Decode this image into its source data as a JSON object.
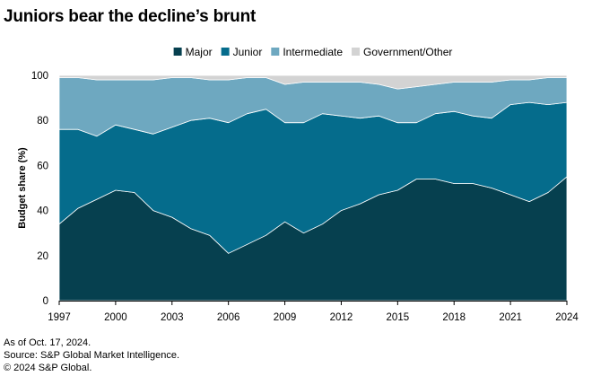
{
  "title": "Juniors bear the decline’s brunt",
  "footnotes": [
    "As of Oct. 17, 2024.",
    "Source: S&P Global Market Intelligence.",
    "© 2024 S&P Global."
  ],
  "chart_data": {
    "type": "area",
    "stacked": true,
    "title": "Juniors bear the decline’s brunt",
    "xlabel": "",
    "ylabel": "Budget share (%)",
    "xlim": [
      1997,
      2024
    ],
    "ylim": [
      0,
      100
    ],
    "x_ticks": [
      1997,
      2000,
      2003,
      2006,
      2009,
      2012,
      2015,
      2018,
      2021,
      2024
    ],
    "y_ticks": [
      0,
      20,
      40,
      60,
      80,
      100
    ],
    "grid": false,
    "legend_position": "top-center",
    "x": [
      1997,
      1998,
      1999,
      2000,
      2001,
      2002,
      2003,
      2004,
      2005,
      2006,
      2007,
      2008,
      2009,
      2010,
      2011,
      2012,
      2013,
      2014,
      2015,
      2016,
      2017,
      2018,
      2019,
      2020,
      2021,
      2022,
      2023,
      2024
    ],
    "series": [
      {
        "name": "Major",
        "color": "#06404f",
        "values": [
          34,
          41,
          45,
          49,
          48,
          40,
          37,
          32,
          29,
          21,
          25,
          29,
          35,
          30,
          34,
          40,
          43,
          47,
          49,
          54,
          54,
          52,
          52,
          50,
          47,
          44,
          48,
          55
        ]
      },
      {
        "name": "Junior",
        "color": "#056c8c",
        "values": [
          42,
          35,
          28,
          29,
          28,
          34,
          40,
          48,
          52,
          58,
          58,
          56,
          44,
          49,
          49,
          42,
          38,
          35,
          30,
          25,
          29,
          32,
          30,
          31,
          40,
          44,
          39,
          33
        ]
      },
      {
        "name": "Intermediate",
        "color": "#6ea8c0",
        "values": [
          23,
          23,
          25,
          20,
          22,
          24,
          22,
          19,
          17,
          19,
          16,
          14,
          17,
          18,
          14,
          15,
          16,
          14,
          15,
          16,
          13,
          13,
          15,
          16,
          11,
          10,
          12,
          11
        ]
      },
      {
        "name": "Government/Other",
        "color": "#d3d3d3",
        "values": [
          1,
          1,
          2,
          2,
          2,
          2,
          1,
          1,
          2,
          2,
          1,
          1,
          4,
          3,
          3,
          3,
          3,
          4,
          6,
          5,
          4,
          3,
          3,
          3,
          2,
          2,
          1,
          1
        ]
      }
    ]
  }
}
